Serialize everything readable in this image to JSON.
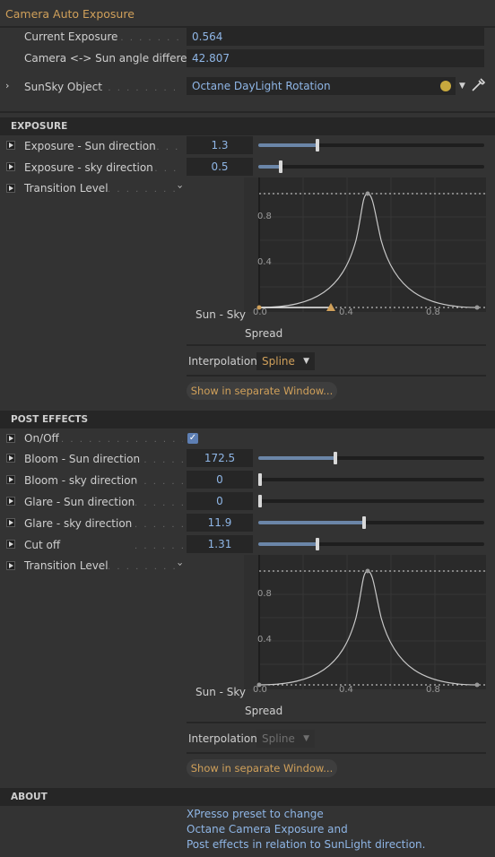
{
  "header": {
    "title": "Camera Auto Exposure"
  },
  "info": {
    "current_exposure_label": "Current Exposure",
    "current_exposure_value": "0.564",
    "angle_label": "Camera <-> Sun angle difference",
    "angle_value": "42.807",
    "sunsky_label": "SunSky Object",
    "sunsky_value": "Octane DayLight Rotation"
  },
  "exposure": {
    "section_title": "EXPOSURE",
    "sun_label": "Exposure - Sun direction",
    "sun_value": "1.3",
    "sun_fraction": 0.26,
    "sky_label": "Exposure - sky direction",
    "sky_value": "0.5",
    "sky_fraction": 0.1,
    "transition_label": "Transition Level",
    "graph": {
      "side_label": "Sun - Sky",
      "x_label": "Spread",
      "y_ticks": [
        "0.8",
        "0.4"
      ],
      "x_ticks": [
        "0.0",
        "0.4",
        "0.8"
      ]
    },
    "interp_label": "Interpolation",
    "interp_value": "Spline",
    "window_button": "Show in separate Window..."
  },
  "post_effects": {
    "section_title": "POST EFFECTS",
    "onoff_label": "On/Off",
    "rows": [
      {
        "label": "Bloom - Sun direction",
        "value": "172.5",
        "fraction": 0.34
      },
      {
        "label": "Bloom - sky direction",
        "value": "0",
        "fraction": 0.0
      },
      {
        "label": "Glare - Sun direction",
        "value": "0",
        "fraction": 0.0
      },
      {
        "label": "Glare - sky direction",
        "value": "11.9",
        "fraction": 0.47
      },
      {
        "label": "Cut off",
        "value": "1.31",
        "fraction": 0.26
      }
    ],
    "transition_label": "Transition Level",
    "graph": {
      "side_label": "Sun - Sky",
      "x_label": "Spread",
      "y_ticks": [
        "0.8",
        "0.4"
      ],
      "x_ticks": [
        "0.0",
        "0.4",
        "0.8"
      ]
    },
    "interp_label": "Interpolation",
    "interp_value": "Spline",
    "window_button": "Show in separate Window..."
  },
  "about": {
    "section_title": "ABOUT",
    "line1": "XPresso preset to change",
    "line2": "Octane Camera Exposure and",
    "line3": "Post effects in relation to SunLight direction."
  },
  "colors": {
    "accent": "#d0a05a",
    "value_text": "#8fb6e6",
    "slider_fill": "#6b86a8",
    "swatch": "#c8a93e"
  }
}
